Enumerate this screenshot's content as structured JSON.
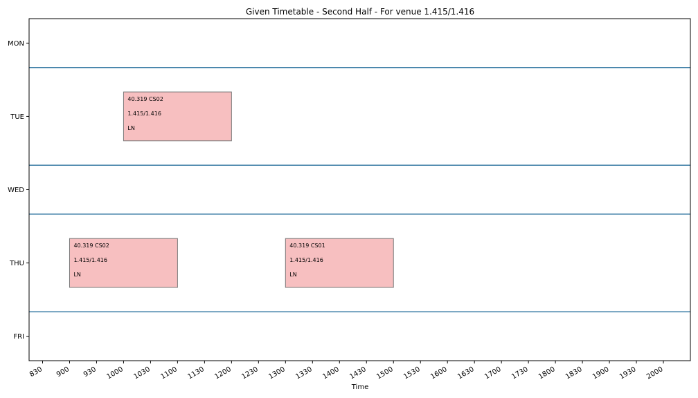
{
  "chart_data": {
    "type": "timetable",
    "title": "Given Timetable - Second Half - For venue 1.415/1.416",
    "xlabel": "Time",
    "ylabel": "",
    "days": [
      "MON",
      "TUE",
      "WED",
      "THU",
      "FRI"
    ],
    "times": [
      "830",
      "900",
      "930",
      "1000",
      "1030",
      "1100",
      "1130",
      "1200",
      "1230",
      "1300",
      "1330",
      "1400",
      "1430",
      "1500",
      "1530",
      "1600",
      "1630",
      "1700",
      "1730",
      "1800",
      "1830",
      "1900",
      "1930",
      "2000"
    ],
    "xlim": [
      -0.5,
      24.0
    ],
    "events": [
      {
        "day": "TUE",
        "start": "1000",
        "end": "1200",
        "lines": [
          "40.319 CS02",
          "1.415/1.416",
          "LN"
        ]
      },
      {
        "day": "THU",
        "start": "900",
        "end": "1100",
        "lines": [
          "40.319 CS02",
          "1.415/1.416",
          "LN"
        ]
      },
      {
        "day": "THU",
        "start": "1300",
        "end": "1500",
        "lines": [
          "40.319 CS01",
          "1.415/1.416",
          "LN"
        ]
      }
    ],
    "colors": {
      "event_fill": "#f7bfc0",
      "event_edge": "#777777",
      "separator": "#3a7ca5",
      "axis": "#000000"
    }
  }
}
